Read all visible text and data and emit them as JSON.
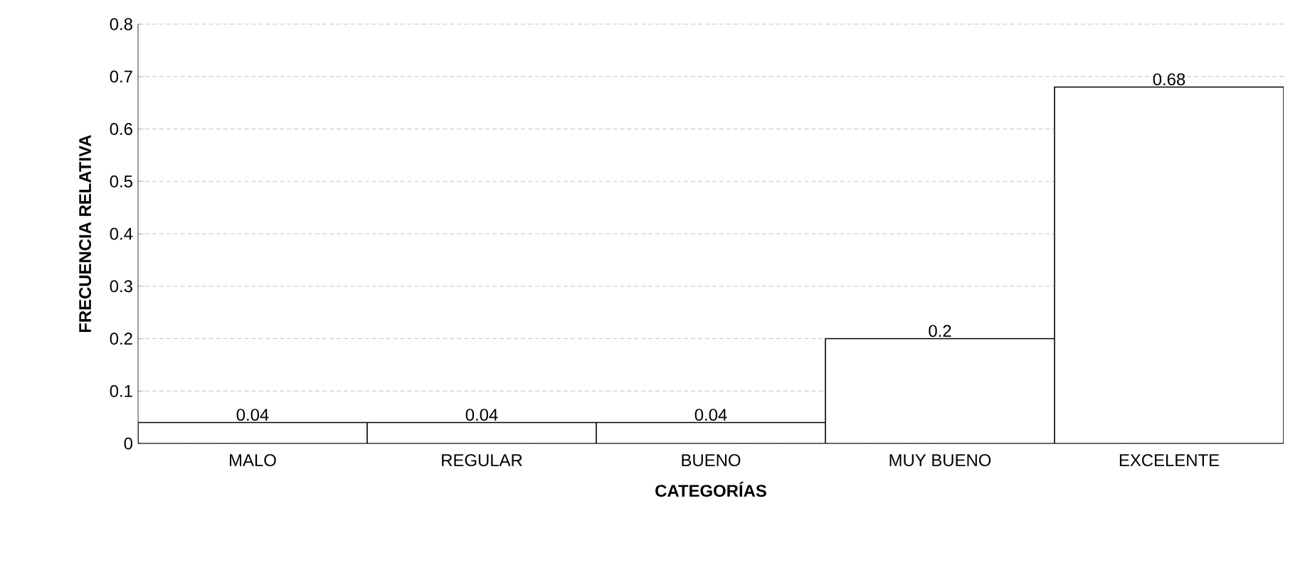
{
  "chart_data": {
    "type": "bar",
    "xlabel": "CATEGORÍAS",
    "ylabel": "FRECUENCIA RELATIVA",
    "categories": [
      "MALO",
      "REGULAR",
      "BUENO",
      "MUY BUENO",
      "EXCELENTE"
    ],
    "values": [
      0.04,
      0.04,
      0.04,
      0.2,
      0.68
    ],
    "color": "#ffffff",
    "ylim": [
      0,
      0.8
    ],
    "yticks": [
      0,
      0.1,
      0.2,
      0.3,
      0.4,
      0.5,
      0.6,
      0.7,
      0.8
    ],
    "grid": "y",
    "data_labels": true
  }
}
